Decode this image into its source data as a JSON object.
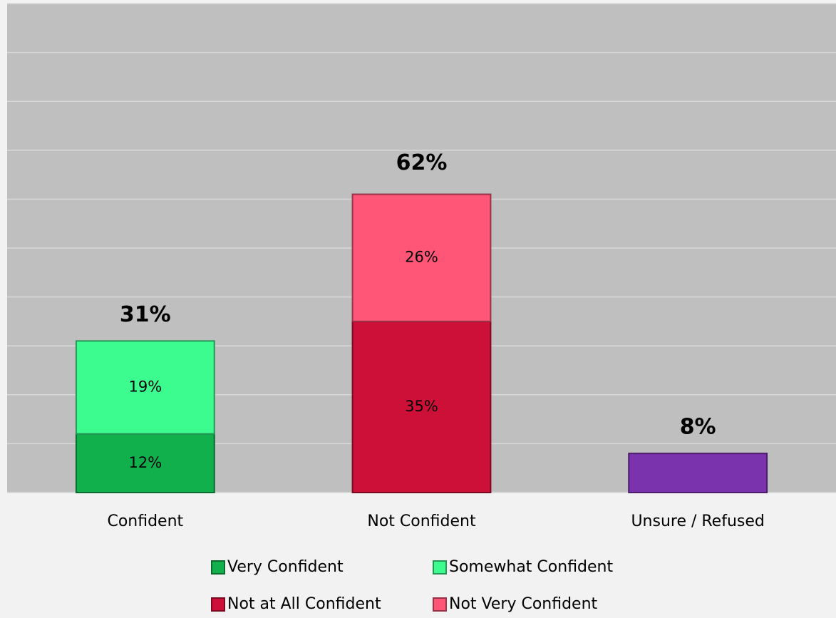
{
  "chart_data": {
    "type": "stacked_bar",
    "categories": [
      "Confident",
      "Not Confident",
      "Unsure / Refused"
    ],
    "series": [
      {
        "name": "Very Confident",
        "color": "#12b04c",
        "values": [
          12,
          null,
          null
        ],
        "value_labels": [
          "12%",
          null,
          null
        ]
      },
      {
        "name": "Somewhat Confident",
        "color": "#3cfc90",
        "values": [
          19,
          null,
          null
        ],
        "value_labels": [
          "19%",
          null,
          null
        ]
      },
      {
        "name": "Not at All Confident",
        "color": "#cc1038",
        "values": [
          null,
          35,
          null
        ],
        "value_labels": [
          null,
          "35%",
          null
        ]
      },
      {
        "name": "Not Very Confident",
        "color": "#ff5577",
        "values": [
          null,
          26,
          null
        ],
        "value_labels": [
          null,
          "26%",
          null
        ]
      },
      {
        "color": "#7b32ad",
        "values": [
          null,
          null,
          8
        ]
      }
    ],
    "totals": {
      "values": [
        31,
        62,
        8
      ],
      "value_labels": [
        "31%",
        "62%",
        "8%"
      ]
    },
    "ylim": [
      0,
      100
    ],
    "yticks": [
      0,
      10,
      20,
      30,
      40,
      50,
      60,
      70,
      80,
      90,
      100
    ],
    "grid": true
  }
}
